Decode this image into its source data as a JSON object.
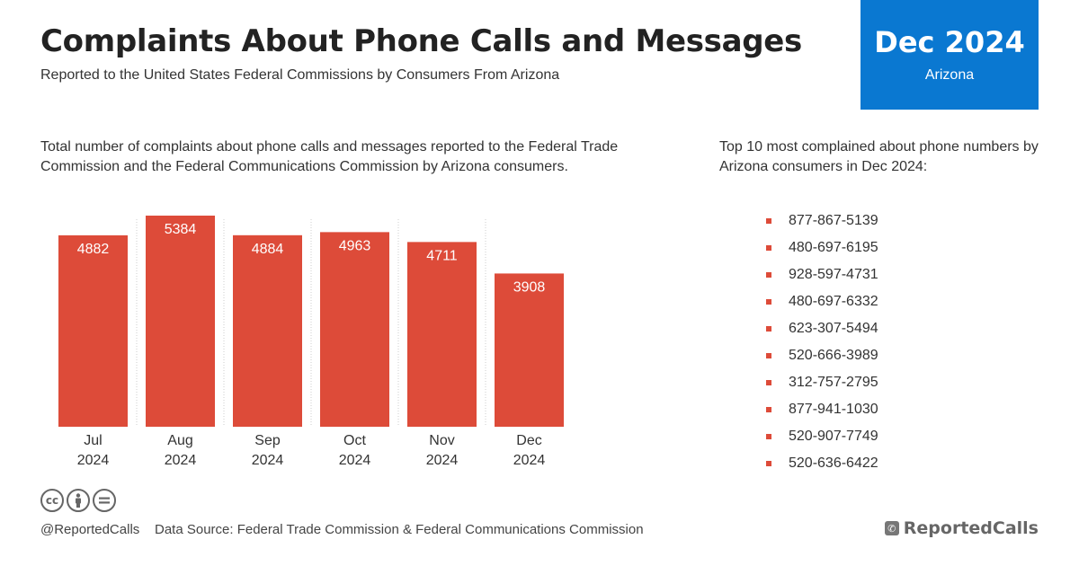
{
  "header": {
    "title": "Complaints About Phone Calls and Messages",
    "subtitle": "Reported to the United States Federal Commissions by Consumers From Arizona"
  },
  "badge": {
    "period": "Dec 2024",
    "region": "Arizona",
    "color": "#0a78d1"
  },
  "chart_section": {
    "description": "Total number of complaints about phone calls and messages reported to the Federal Trade Commission and the Federal Communications Commission by Arizona consumers."
  },
  "top_numbers": {
    "description": "Top 10 most complained about phone numbers by Arizona consumers in Dec 2024:",
    "items": [
      "877-867-5139",
      "480-697-6195",
      "928-597-4731",
      "480-697-6332",
      "623-307-5494",
      "520-666-3989",
      "312-757-2795",
      "877-941-1030",
      "520-907-7749",
      "520-636-6422"
    ]
  },
  "footer": {
    "handle": "@ReportedCalls",
    "source": "Data Source: Federal Trade Commission & Federal Communications Commission",
    "brand": "ReportedCalls",
    "license_icons": [
      "cc-icon",
      "by-icon",
      "nd-icon"
    ]
  },
  "chart_data": {
    "type": "bar",
    "categories": [
      [
        "Jul",
        "2024"
      ],
      [
        "Aug",
        "2024"
      ],
      [
        "Sep",
        "2024"
      ],
      [
        "Oct",
        "2024"
      ],
      [
        "Nov",
        "2024"
      ],
      [
        "Dec",
        "2024"
      ]
    ],
    "values": [
      4882,
      5384,
      4884,
      4963,
      4711,
      3908
    ],
    "data_labels": true,
    "grid": "vertical dotted separators",
    "bar_color": "#dd4b39",
    "label_color": "#ffffff"
  }
}
